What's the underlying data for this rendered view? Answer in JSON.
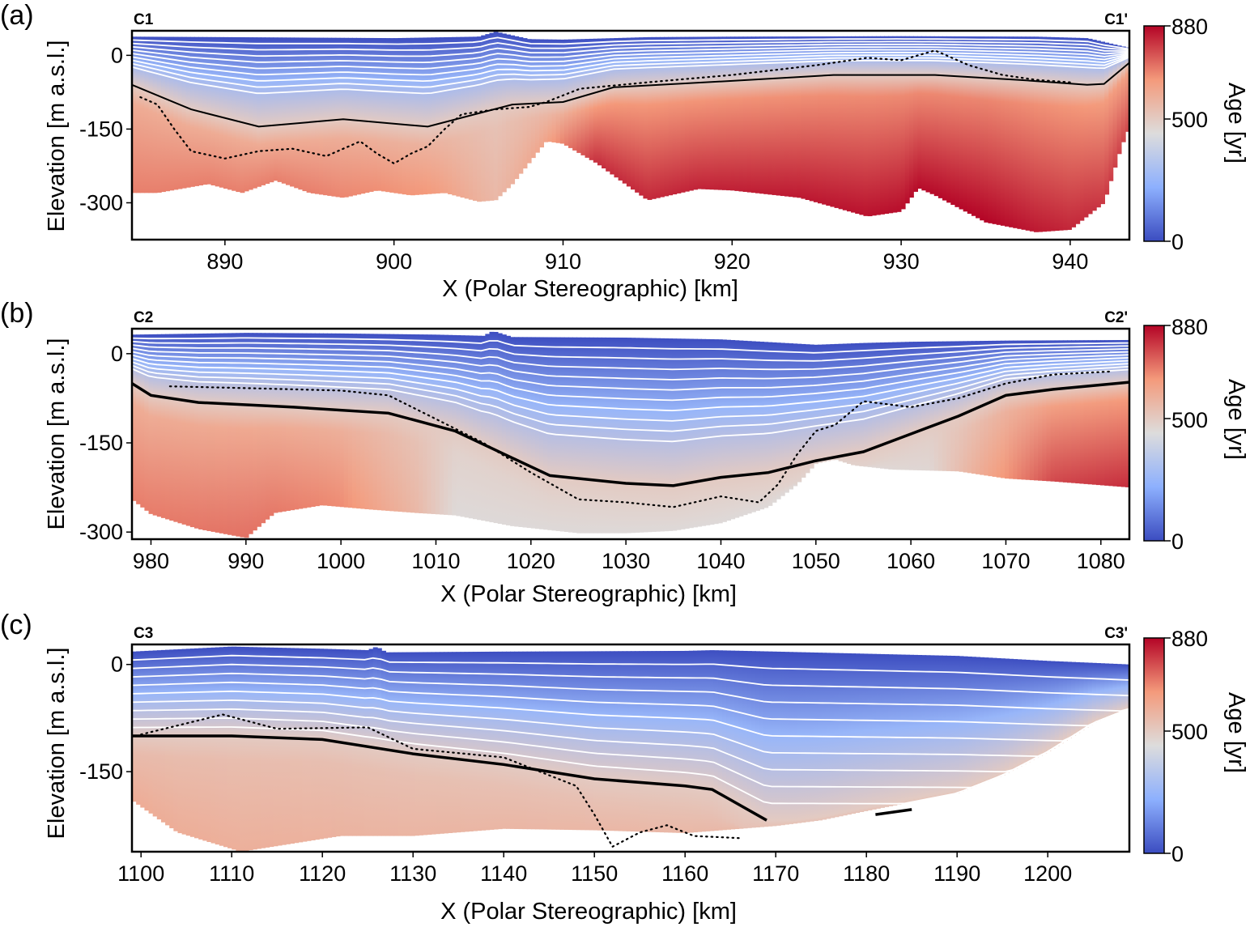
{
  "colors": {
    "age_low": "#3b4cc0",
    "age_mid": "#dddcdc",
    "age_high": "#b40426",
    "contour": "#ffffff",
    "line": "#000000"
  },
  "chart_data": [
    {
      "type": "heatmap",
      "panel_label": "(a)",
      "left_label": "C1",
      "right_label": "C1'",
      "xlabel": "X (Polar Stereographic) [km]",
      "ylabel": "Elevation [m a.s.l.]",
      "xlim": [
        884.5,
        943.5
      ],
      "ylim": [
        -375,
        50
      ],
      "xticks": [
        "890",
        "900",
        "910",
        "920",
        "930",
        "940"
      ],
      "yticks": [
        "0",
        "-150",
        "-300"
      ],
      "colorbar": {
        "label": "Age [yr]",
        "ticks": [
          "880",
          "500",
          "0"
        ],
        "range": [
          0,
          880
        ]
      },
      "surface": [
        [
          884.5,
          38
        ],
        [
          890,
          37
        ],
        [
          900,
          35
        ],
        [
          905,
          38
        ],
        [
          906,
          48
        ],
        [
          908,
          33
        ],
        [
          910,
          32
        ],
        [
          915,
          37
        ],
        [
          920,
          38
        ],
        [
          930,
          39
        ],
        [
          938,
          38
        ],
        [
          941,
          35
        ],
        [
          943.5,
          15
        ]
      ],
      "bed": [
        [
          884.5,
          -280
        ],
        [
          886,
          -280
        ],
        [
          889,
          -262
        ],
        [
          891,
          -280
        ],
        [
          893,
          -255
        ],
        [
          895,
          -280
        ],
        [
          897,
          -290
        ],
        [
          899,
          -275
        ],
        [
          901,
          -285
        ],
        [
          903,
          -280
        ],
        [
          905,
          -298
        ],
        [
          906,
          -295
        ],
        [
          907,
          -262
        ],
        [
          909,
          -175
        ],
        [
          910,
          -180
        ],
        [
          912,
          -220
        ],
        [
          915,
          -295
        ],
        [
          918,
          -272
        ],
        [
          920,
          -275
        ],
        [
          924,
          -290
        ],
        [
          928,
          -328
        ],
        [
          930,
          -318
        ],
        [
          931,
          -270
        ],
        [
          932,
          -285
        ],
        [
          935,
          -340
        ],
        [
          938,
          -360
        ],
        [
          940,
          -355
        ],
        [
          942,
          -300
        ],
        [
          943,
          -188
        ],
        [
          943.5,
          -145
        ]
      ],
      "age_profile": [
        [
          884.5,
          700
        ],
        [
          895,
          700
        ],
        [
          902,
          660
        ],
        [
          906,
          560
        ],
        [
          909,
          630
        ],
        [
          912,
          820
        ],
        [
          920,
          840
        ],
        [
          935,
          880
        ],
        [
          941,
          820
        ],
        [
          943.5,
          780
        ]
      ],
      "isochron_depths": [
        0.07,
        0.14,
        0.21,
        0.28,
        0.35,
        0.42,
        0.49,
        0.56,
        0.63
      ],
      "isochron_500": [
        [
          884.5,
          -60
        ],
        [
          888,
          -110
        ],
        [
          892,
          -145
        ],
        [
          897,
          -130
        ],
        [
          902,
          -145
        ],
        [
          907,
          -100
        ],
        [
          910,
          -95
        ],
        [
          913,
          -65
        ],
        [
          920,
          -52
        ],
        [
          926,
          -40
        ],
        [
          932,
          -40
        ],
        [
          937,
          -50
        ],
        [
          941,
          -60
        ],
        [
          942,
          -58
        ],
        [
          943.5,
          -15
        ]
      ],
      "radar_layer": [
        [
          885,
          -85
        ],
        [
          886,
          -100
        ],
        [
          887,
          -150
        ],
        [
          888,
          -195
        ],
        [
          890,
          -210
        ],
        [
          892,
          -195
        ],
        [
          894,
          -190
        ],
        [
          896,
          -205
        ],
        [
          898,
          -175
        ],
        [
          899,
          -200
        ],
        [
          900,
          -220
        ],
        [
          901,
          -200
        ],
        [
          902,
          -185
        ],
        [
          903,
          -150
        ],
        [
          904,
          -120
        ],
        [
          906,
          -110
        ],
        [
          908,
          -105
        ],
        [
          909,
          -95
        ],
        [
          911,
          -68
        ],
        [
          915,
          -55
        ],
        [
          920,
          -40
        ],
        [
          925,
          -20
        ],
        [
          928,
          -5
        ],
        [
          930,
          -10
        ],
        [
          932,
          10
        ],
        [
          934,
          -20
        ],
        [
          936,
          -40
        ],
        [
          938,
          -50
        ],
        [
          940,
          -55
        ]
      ]
    },
    {
      "type": "heatmap",
      "panel_label": "(b)",
      "left_label": "C2",
      "right_label": "C2'",
      "xlabel": "X (Polar Stereographic) [km]",
      "ylabel": "Elevation [m a.s.l.]",
      "xlim": [
        978,
        1083
      ],
      "ylim": [
        -312,
        42
      ],
      "xticks": [
        "980",
        "990",
        "1000",
        "1010",
        "1020",
        "1030",
        "1040",
        "1050",
        "1060",
        "1070",
        "1080"
      ],
      "yticks": [
        "0",
        "-150",
        "-300"
      ],
      "colorbar": {
        "label": "Age [yr]",
        "ticks": [
          "880",
          "500",
          "0"
        ],
        "range": [
          0,
          880
        ]
      },
      "surface": [
        [
          978,
          32
        ],
        [
          990,
          35
        ],
        [
          1000,
          34
        ],
        [
          1010,
          32
        ],
        [
          1015,
          30
        ],
        [
          1016,
          38
        ],
        [
          1018,
          28
        ],
        [
          1030,
          27
        ],
        [
          1040,
          24
        ],
        [
          1050,
          15
        ],
        [
          1055,
          18
        ],
        [
          1060,
          20
        ],
        [
          1070,
          22
        ],
        [
          1083,
          23
        ]
      ],
      "bed": [
        [
          978,
          -245
        ],
        [
          980,
          -270
        ],
        [
          985,
          -295
        ],
        [
          990,
          -310
        ],
        [
          993,
          -268
        ],
        [
          998,
          -255
        ],
        [
          1003,
          -262
        ],
        [
          1008,
          -268
        ],
        [
          1012,
          -272
        ],
        [
          1018,
          -290
        ],
        [
          1025,
          -302
        ],
        [
          1030,
          -302
        ],
        [
          1035,
          -298
        ],
        [
          1040,
          -285
        ],
        [
          1045,
          -258
        ],
        [
          1048,
          -220
        ],
        [
          1050,
          -185
        ],
        [
          1052,
          -178
        ],
        [
          1054,
          -188
        ],
        [
          1058,
          -195
        ],
        [
          1065,
          -198
        ],
        [
          1070,
          -210
        ],
        [
          1075,
          -215
        ],
        [
          1083,
          -225
        ]
      ],
      "age_profile": [
        [
          978,
          700
        ],
        [
          990,
          720
        ],
        [
          1000,
          680
        ],
        [
          1008,
          560
        ],
        [
          1012,
          450
        ],
        [
          1050,
          450
        ],
        [
          1062,
          460
        ],
        [
          1068,
          620
        ],
        [
          1075,
          780
        ],
        [
          1083,
          820
        ]
      ],
      "isochron_depths": [
        0.07,
        0.14,
        0.21,
        0.28,
        0.35,
        0.42,
        0.49,
        0.56,
        0.63,
        0.7
      ],
      "isochron_500": [
        [
          978,
          -50
        ],
        [
          980,
          -70
        ],
        [
          985,
          -82
        ],
        [
          995,
          -90
        ],
        [
          1005,
          -100
        ],
        [
          1012,
          -130
        ],
        [
          1018,
          -175
        ],
        [
          1022,
          -205
        ],
        [
          1030,
          -218
        ],
        [
          1035,
          -222
        ],
        [
          1040,
          -208
        ],
        [
          1045,
          -200
        ],
        [
          1050,
          -180
        ],
        [
          1055,
          -165
        ],
        [
          1060,
          -135
        ],
        [
          1065,
          -105
        ],
        [
          1070,
          -70
        ],
        [
          1075,
          -60
        ],
        [
          1083,
          -48
        ]
      ],
      "radar_layer": [
        [
          982,
          -55
        ],
        [
          990,
          -58
        ],
        [
          1000,
          -62
        ],
        [
          1005,
          -70
        ],
        [
          1010,
          -110
        ],
        [
          1015,
          -150
        ],
        [
          1020,
          -200
        ],
        [
          1025,
          -245
        ],
        [
          1030,
          -250
        ],
        [
          1035,
          -258
        ],
        [
          1040,
          -240
        ],
        [
          1044,
          -250
        ],
        [
          1046,
          -220
        ],
        [
          1048,
          -170
        ],
        [
          1050,
          -130
        ],
        [
          1052,
          -120
        ],
        [
          1055,
          -80
        ],
        [
          1060,
          -90
        ],
        [
          1065,
          -75
        ],
        [
          1070,
          -50
        ],
        [
          1075,
          -35
        ],
        [
          1081,
          -30
        ]
      ]
    },
    {
      "type": "heatmap",
      "panel_label": "(c)",
      "left_label": "C3",
      "right_label": "C3'",
      "xlabel": "X (Polar Stereographic) [km]",
      "ylabel": "Elevation [m a.s.l.]",
      "xlim": [
        1099,
        1209
      ],
      "ylim": [
        -262,
        28
      ],
      "xticks": [
        "1100",
        "1110",
        "1120",
        "1130",
        "1140",
        "1150",
        "1160",
        "1170",
        "1180",
        "1190",
        "1200"
      ],
      "yticks": [
        "0",
        "-150"
      ],
      "colorbar": {
        "label": "Age [yr]",
        "ticks": [
          "880",
          "500",
          "0"
        ],
        "range": [
          0,
          880
        ]
      },
      "surface": [
        [
          1099,
          18
        ],
        [
          1110,
          25
        ],
        [
          1120,
          22
        ],
        [
          1125,
          20
        ],
        [
          1126,
          25
        ],
        [
          1127,
          17
        ],
        [
          1140,
          18
        ],
        [
          1160,
          19
        ],
        [
          1163,
          20
        ],
        [
          1170,
          18
        ],
        [
          1190,
          12
        ],
        [
          1200,
          5
        ],
        [
          1209,
          0
        ]
      ],
      "bed": [
        [
          1099,
          -190
        ],
        [
          1104,
          -235
        ],
        [
          1111,
          -262
        ],
        [
          1117,
          -250
        ],
        [
          1122,
          -240
        ],
        [
          1130,
          -240
        ],
        [
          1140,
          -230
        ],
        [
          1150,
          -232
        ],
        [
          1160,
          -236
        ],
        [
          1170,
          -226
        ],
        [
          1175,
          -218
        ],
        [
          1180,
          -205
        ],
        [
          1190,
          -180
        ],
        [
          1195,
          -155
        ],
        [
          1200,
          -122
        ],
        [
          1205,
          -82
        ],
        [
          1209,
          -62
        ]
      ],
      "age_profile": [
        [
          1099,
          600
        ],
        [
          1130,
          570
        ],
        [
          1160,
          560
        ],
        [
          1209,
          540
        ]
      ],
      "isochron_depths": [
        0.1,
        0.2,
        0.3,
        0.4,
        0.5,
        0.6,
        0.7,
        0.8,
        0.9
      ],
      "isochron_500": [
        [
          1099,
          -100
        ],
        [
          1110,
          -100
        ],
        [
          1120,
          -105
        ],
        [
          1130,
          -125
        ],
        [
          1140,
          -140
        ],
        [
          1150,
          -160
        ],
        [
          1160,
          -170
        ],
        [
          1163,
          -175
        ],
        [
          1169,
          -218
        ]
      ],
      "isochron_500_b": [
        [
          1181,
          -210
        ],
        [
          1185,
          -203
        ]
      ],
      "radar_layer": [
        [
          1100,
          -98
        ],
        [
          1109,
          -70
        ],
        [
          1115,
          -90
        ],
        [
          1125,
          -88
        ],
        [
          1130,
          -118
        ],
        [
          1140,
          -130
        ],
        [
          1148,
          -170
        ],
        [
          1150,
          -210
        ],
        [
          1152,
          -255
        ],
        [
          1155,
          -235
        ],
        [
          1158,
          -225
        ],
        [
          1161,
          -240
        ],
        [
          1166,
          -243
        ]
      ]
    }
  ]
}
